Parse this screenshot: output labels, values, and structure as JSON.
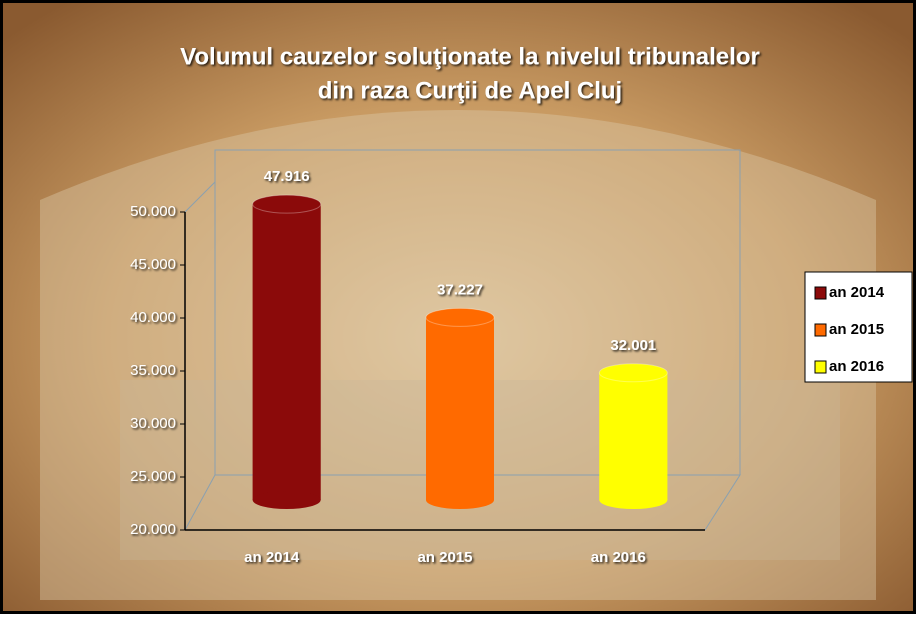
{
  "chart_data": {
    "type": "bar",
    "title": [
      "Volumul cauzelor soluţionate la nivelul tribunalelor",
      "din raza Curţii de Apel Cluj"
    ],
    "categories": [
      "an 2014",
      "an 2015",
      "an 2016"
    ],
    "values": [
      47916,
      37227,
      32001
    ],
    "value_labels": [
      "47.916",
      "37.227",
      "32.001"
    ],
    "colors": [
      "#8b0a0a",
      "#ff6a00",
      "#ffff00"
    ],
    "ylim": [
      20000,
      50000
    ],
    "yticks": [
      {
        "value": 20000,
        "label": "20.000"
      },
      {
        "value": 25000,
        "label": "25.000"
      },
      {
        "value": 30000,
        "label": "30.000"
      },
      {
        "value": 35000,
        "label": "35.000"
      },
      {
        "value": 40000,
        "label": "40.000"
      },
      {
        "value": 45000,
        "label": "45.000"
      },
      {
        "value": 50000,
        "label": "50.000"
      }
    ],
    "legend": "right"
  }
}
